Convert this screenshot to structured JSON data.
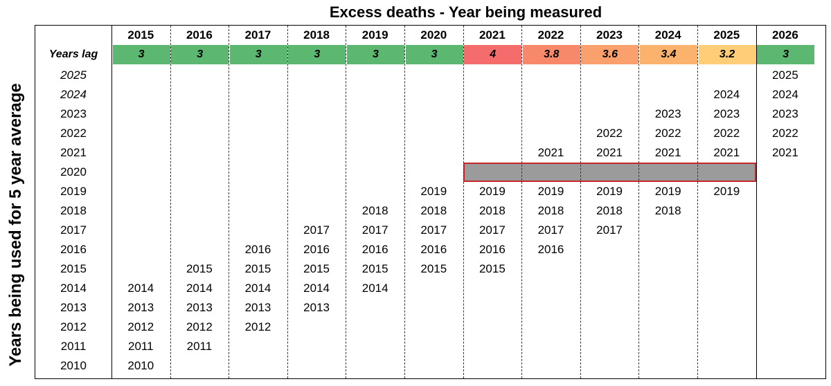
{
  "title": "Excess deaths - Year being measured",
  "side_label": "Years being used for 5 year average",
  "lag_label": "Years lag",
  "columns": [
    {
      "year": "2015",
      "lag": "3",
      "lag_color": "#5cb870"
    },
    {
      "year": "2016",
      "lag": "3",
      "lag_color": "#5cb870"
    },
    {
      "year": "2017",
      "lag": "3",
      "lag_color": "#5cb870"
    },
    {
      "year": "2018",
      "lag": "3",
      "lag_color": "#5cb870"
    },
    {
      "year": "2019",
      "lag": "3",
      "lag_color": "#5cb870"
    },
    {
      "year": "2020",
      "lag": "3",
      "lag_color": "#5cb870"
    },
    {
      "year": "2021",
      "lag": "4",
      "lag_color": "#f56c6c"
    },
    {
      "year": "2022",
      "lag": "3.8",
      "lag_color": "#f8886a"
    },
    {
      "year": "2023",
      "lag": "3.6",
      "lag_color": "#faa06c"
    },
    {
      "year": "2024",
      "lag": "3.4",
      "lag_color": "#fbb26d"
    },
    {
      "year": "2025",
      "lag": "3.2",
      "lag_color": "#fdcd78"
    },
    {
      "year": "2026",
      "lag": "3",
      "lag_color": "#5cb870"
    }
  ],
  "row_labels": [
    {
      "text": "2025",
      "italic": true
    },
    {
      "text": "2024",
      "italic": true
    },
    {
      "text": "2023",
      "italic": false
    },
    {
      "text": "2022",
      "italic": false
    },
    {
      "text": "2021",
      "italic": false
    },
    {
      "text": "2020",
      "italic": false
    },
    {
      "text": "2019",
      "italic": false
    },
    {
      "text": "2018",
      "italic": false
    },
    {
      "text": "2017",
      "italic": false
    },
    {
      "text": "2016",
      "italic": false
    },
    {
      "text": "2015",
      "italic": false
    },
    {
      "text": "2014",
      "italic": false
    },
    {
      "text": "2013",
      "italic": false
    },
    {
      "text": "2012",
      "italic": false
    },
    {
      "text": "2011",
      "italic": false
    },
    {
      "text": "2010",
      "italic": false
    }
  ],
  "cells": [
    [
      "",
      "",
      "",
      "",
      "",
      "",
      "",
      "",
      "",
      "",
      "",
      "2025"
    ],
    [
      "",
      "",
      "",
      "",
      "",
      "",
      "",
      "",
      "",
      "",
      "2024",
      "2024"
    ],
    [
      "",
      "",
      "",
      "",
      "",
      "",
      "",
      "",
      "",
      "2023",
      "2023",
      "2023"
    ],
    [
      "",
      "",
      "",
      "",
      "",
      "",
      "",
      "",
      "2022",
      "2022",
      "2022",
      "2022"
    ],
    [
      "",
      "",
      "",
      "",
      "",
      "",
      "",
      "2021",
      "2021",
      "2021",
      "2021",
      "2021"
    ],
    [
      "",
      "",
      "",
      "",
      "",
      "",
      "",
      "",
      "",
      "",
      "",
      ""
    ],
    [
      "",
      "",
      "",
      "",
      "",
      "2019",
      "2019",
      "2019",
      "2019",
      "2019",
      "2019",
      ""
    ],
    [
      "",
      "",
      "",
      "",
      "2018",
      "2018",
      "2018",
      "2018",
      "2018",
      "2018",
      "",
      ""
    ],
    [
      "",
      "",
      "",
      "2017",
      "2017",
      "2017",
      "2017",
      "2017",
      "2017",
      "",
      "",
      ""
    ],
    [
      "",
      "",
      "2016",
      "2016",
      "2016",
      "2016",
      "2016",
      "2016",
      "",
      "",
      "",
      ""
    ],
    [
      "",
      "2015",
      "2015",
      "2015",
      "2015",
      "2015",
      "2015",
      "",
      "",
      "",
      "",
      ""
    ],
    [
      "2014",
      "2014",
      "2014",
      "2014",
      "2014",
      "",
      "",
      "",
      "",
      "",
      "",
      ""
    ],
    [
      "2013",
      "2013",
      "2013",
      "2013",
      "",
      "",
      "",
      "",
      "",
      "",
      "",
      ""
    ],
    [
      "2012",
      "2012",
      "2012",
      "",
      "",
      "",
      "",
      "",
      "",
      "",
      "",
      ""
    ],
    [
      "2011",
      "2011",
      "",
      "",
      "",
      "",
      "",
      "",
      "",
      "",
      "",
      ""
    ],
    [
      "2010",
      "",
      "",
      "",
      "",
      "",
      "",
      "",
      "",
      "",
      "",
      ""
    ]
  ],
  "excluded_year_bar": {
    "row": "2020",
    "from_column": "2021",
    "to_column": "2025",
    "fill": "#9b9b9b",
    "outline": "#c62828"
  }
}
